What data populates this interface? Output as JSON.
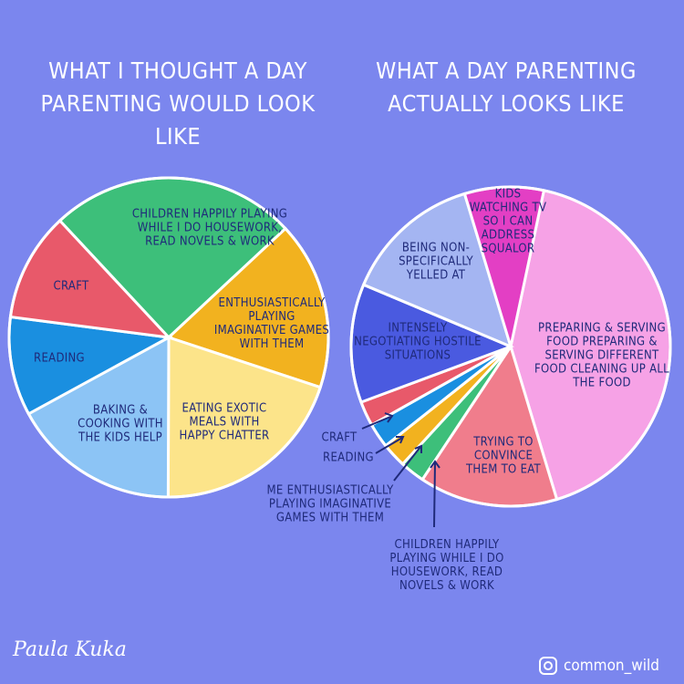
{
  "chart_data": [
    {
      "type": "pie",
      "title": "WHAT I THOUGHT A DAY PARENTING WOULD LOOK LIKE",
      "start_angle": 317,
      "categories": [
        "CHILDREN HAPPILY PLAYING WHILE I DO HOUSEWORK, READ NOVELS & WORK",
        "ENTHUSIASTICALLY PLAYING IMAGINATIVE GAMES WITH THEM",
        "EATING EXOTIC MEALS WITH HAPPY CHATTER",
        "BAKING & COOKING WITH THE KIDS HELP",
        "READING",
        "CRAFT"
      ],
      "values": [
        25,
        17,
        20,
        17,
        10,
        11
      ],
      "colors": [
        "#3dbf7a",
        "#f2b21f",
        "#fce48a",
        "#8cc4f5",
        "#1a8fe0",
        "#e8596a"
      ]
    },
    {
      "type": "pie",
      "title": "WHAT A DAY PARENTING ACTUALLY LOOKS LIKE",
      "start_angle": 12,
      "categories": [
        "PREPARING & SERVING FOOD PREPARING & SERVING DIFFERENT FOOD CLEANING UP ALL THE FOOD",
        "TRYING TO CONVINCE THEM TO EAT",
        "CHILDREN HAPPILY PLAYING WHILE I DO HOUSEWORK, READ NOVELS & WORK",
        "ME ENTHUSIASTICALLY PLAYING IMAGINATIVE GAMES WITH THEM",
        "READING",
        "CRAFT",
        "INTENSELY NEGOTIATING HOSTILE SITUATIONS",
        "BEING NON-SPECIFICALLY YELLED AT",
        "KIDS WATCHING TV SO I CAN ADDRESS SQUALOR"
      ],
      "values": [
        42,
        14,
        2.5,
        2.5,
        2.5,
        2.5,
        12,
        14,
        8
      ],
      "colors": [
        "#f6a2e6",
        "#f07d8c",
        "#3dbf7a",
        "#f2b21f",
        "#1a8fe0",
        "#e8596a",
        "#4a5ae0",
        "#a4b5f2",
        "#e33fc4"
      ]
    }
  ],
  "signature": "Paula Kuka",
  "handle": "common_wild"
}
